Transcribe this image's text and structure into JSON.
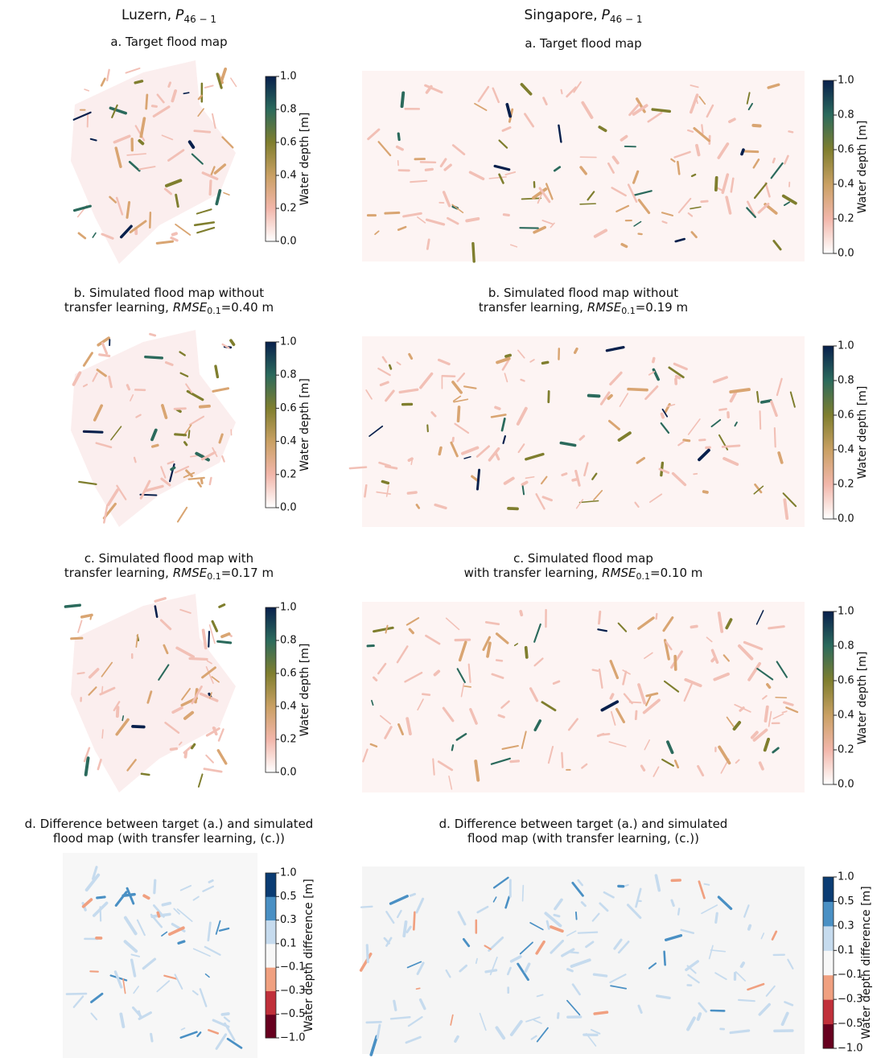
{
  "columns": [
    {
      "heading": {
        "place": "Luzern,",
        "symbol": "P",
        "subscript": "46 − 1"
      },
      "panels": [
        {
          "title_lines": [
            "a. Target flood map"
          ]
        },
        {
          "title_lines": [
            "b. Simulated flood map without",
            "transfer learning,"
          ],
          "metric": "RMSE",
          "metric_sub": "0.1",
          "metric_value": "=0.40 m"
        },
        {
          "title_lines": [
            "c. Simulated flood map with",
            "transfer learning,"
          ],
          "metric": "RMSE",
          "metric_sub": "0.1",
          "metric_value": "=0.17 m"
        },
        {
          "title_lines": [
            "d. Difference between target (a.) and simulated",
            "flood map (with transfer learning, (c.))"
          ]
        }
      ]
    },
    {
      "heading": {
        "place": "Singapore,",
        "symbol": "P",
        "subscript": "46 − 1"
      },
      "panels": [
        {
          "title_lines": [
            "a. Target flood map"
          ]
        },
        {
          "title_lines": [
            "b. Simulated flood map without",
            "transfer learning,"
          ],
          "metric": "RMSE",
          "metric_sub": "0.1",
          "metric_value": "=0.19 m"
        },
        {
          "title_lines": [
            "c. Simulated flood map",
            "with transfer learning,"
          ],
          "metric": "RMSE",
          "metric_sub": "0.1",
          "metric_value": "=0.10 m"
        },
        {
          "title_lines": [
            "d. Difference between target (a.) and simulated",
            "flood map (with transfer learning, (c.))"
          ]
        }
      ]
    }
  ],
  "depth_colorbar": {
    "label": "Water depth [m]",
    "ticks": [
      "0.0",
      "0.2",
      "0.4",
      "0.6",
      "0.8",
      "1.0"
    ]
  },
  "difference_colorbar": {
    "label": "Water depth difference [m]",
    "ticks": [
      "−1.0",
      "−0.5",
      "−0.3",
      "−0.1",
      "0.1",
      "0.3",
      "0.5",
      "1.0"
    ]
  }
}
